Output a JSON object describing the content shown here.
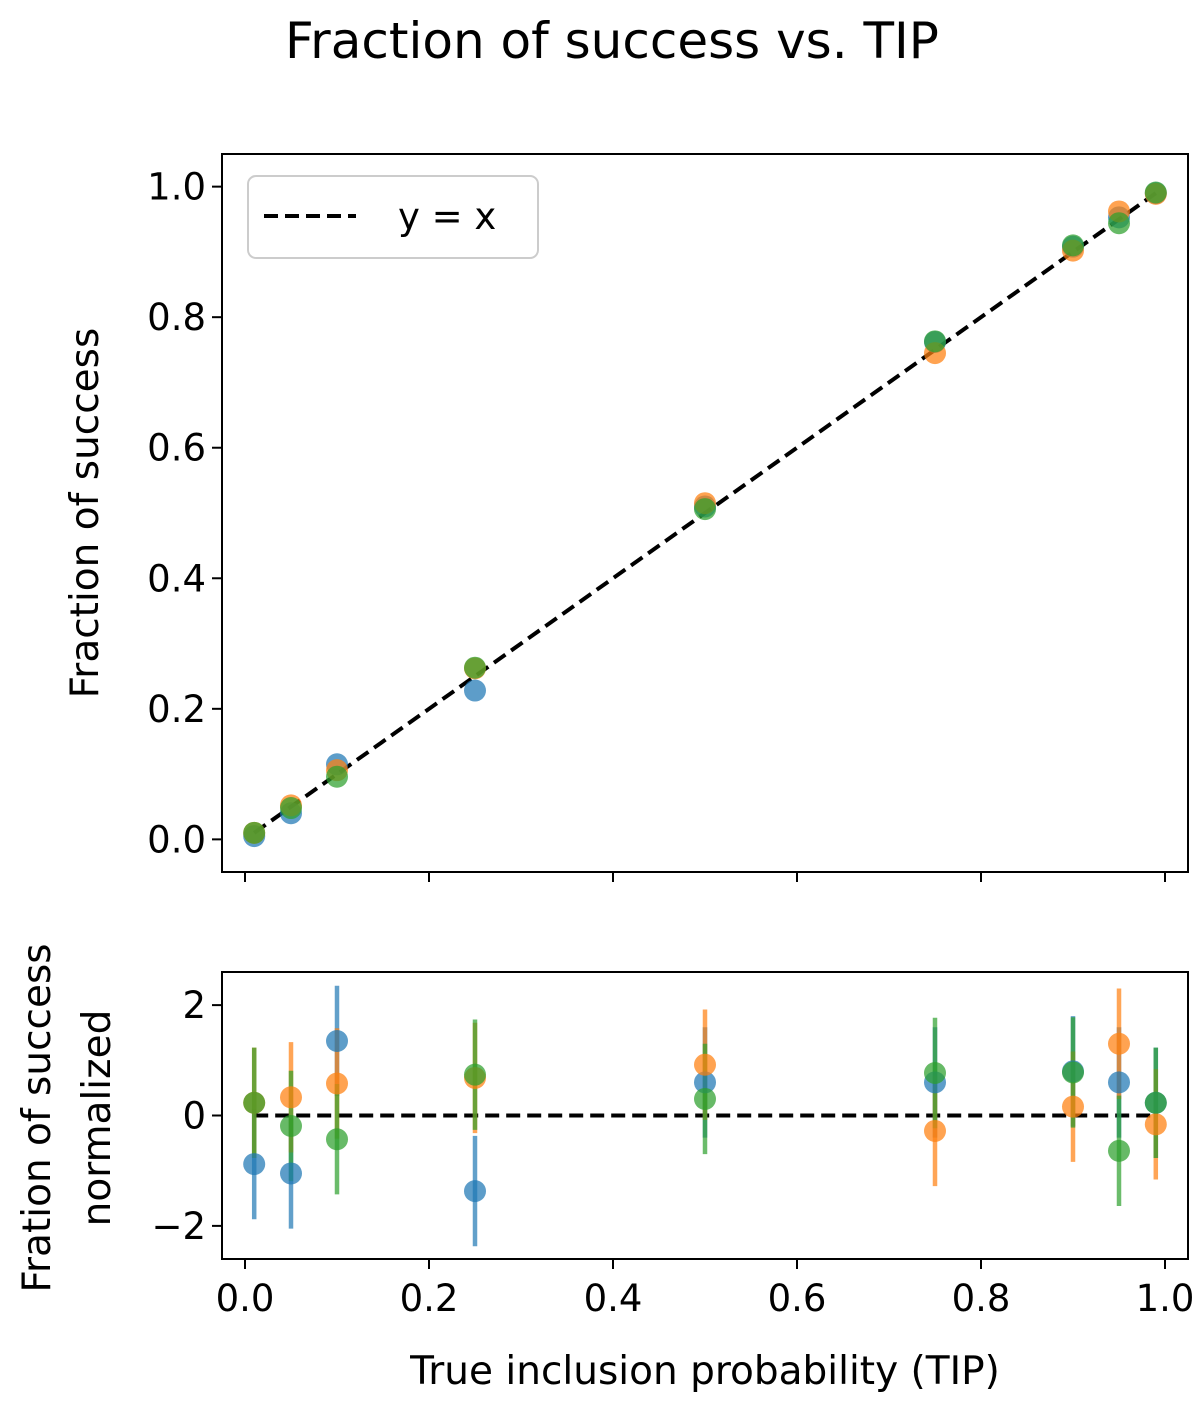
{
  "title": "Fraction of success vs. TIP",
  "colors": {
    "blue": "#1f77b4",
    "orange": "#ff7f0e",
    "green": "#2ca02c",
    "ref": "#000000"
  },
  "chart_data": [
    {
      "type": "scatter",
      "title": "Fraction of success vs. TIP",
      "xlabel": "",
      "ylabel": "Fraction of success",
      "xlim": [
        -0.025,
        1.025
      ],
      "ylim": [
        -0.05,
        1.05
      ],
      "yticks": [
        0.0,
        0.2,
        0.4,
        0.6,
        0.8,
        1.0
      ],
      "ytick_labels": [
        "0.0",
        "0.2",
        "0.4",
        "0.6",
        "0.8",
        "1.0"
      ],
      "xticks": [
        0.0,
        0.2,
        0.4,
        0.6,
        0.8,
        1.0
      ],
      "legend": {
        "location": "upper-left",
        "entries": [
          {
            "label": "y = x",
            "style": "dashed-black-line"
          }
        ]
      },
      "reference_line": {
        "label": "y = x",
        "x": [
          0.01,
          0.99
        ],
        "y": [
          0.01,
          0.99
        ]
      },
      "x": [
        0.01,
        0.05,
        0.1,
        0.25,
        0.5,
        0.75,
        0.9,
        0.95,
        0.99
      ],
      "series": [
        {
          "name": "series-blue",
          "color": "blue",
          "values": [
            0.005,
            0.04,
            0.115,
            0.228,
            0.51,
            0.762,
            0.908,
            0.953,
            0.99
          ]
        },
        {
          "name": "series-orange",
          "color": "orange",
          "values": [
            0.01,
            0.052,
            0.106,
            0.262,
            0.515,
            0.745,
            0.902,
            0.962,
            0.989
          ]
        },
        {
          "name": "series-green",
          "color": "green",
          "values": [
            0.01,
            0.048,
            0.096,
            0.263,
            0.506,
            0.763,
            0.91,
            0.944,
            0.991
          ]
        }
      ]
    },
    {
      "type": "scatter",
      "title": "",
      "xlabel": "True inclusion probability (TIP)",
      "ylabel_lines": [
        "Fration of success",
        "normalized"
      ],
      "xlim": [
        -0.025,
        1.025
      ],
      "ylim": [
        -2.6,
        2.6
      ],
      "yticks": [
        -2,
        0,
        2
      ],
      "ytick_labels": [
        "−2",
        "0",
        "2"
      ],
      "xticks": [
        0.0,
        0.2,
        0.4,
        0.6,
        0.8,
        1.0
      ],
      "xtick_labels": [
        "0.0",
        "0.2",
        "0.4",
        "0.6",
        "0.8",
        "1.0"
      ],
      "reference_line": {
        "x": [
          0.01,
          0.99
        ],
        "y": [
          0,
          0
        ]
      },
      "x": [
        0.01,
        0.05,
        0.1,
        0.25,
        0.5,
        0.75,
        0.9,
        0.95,
        0.99
      ],
      "error": 1.0,
      "series": [
        {
          "name": "series-blue",
          "color": "blue",
          "values": [
            -0.88,
            -1.05,
            1.35,
            -1.37,
            0.6,
            0.6,
            0.8,
            0.6,
            0.23
          ]
        },
        {
          "name": "series-orange",
          "color": "orange",
          "values": [
            0.23,
            0.33,
            0.58,
            0.68,
            0.92,
            -0.28,
            0.16,
            1.3,
            -0.16
          ]
        },
        {
          "name": "series-green",
          "color": "green",
          "values": [
            0.23,
            -0.19,
            -0.43,
            0.74,
            0.3,
            0.77,
            0.78,
            -0.64,
            0.23
          ]
        }
      ]
    }
  ]
}
